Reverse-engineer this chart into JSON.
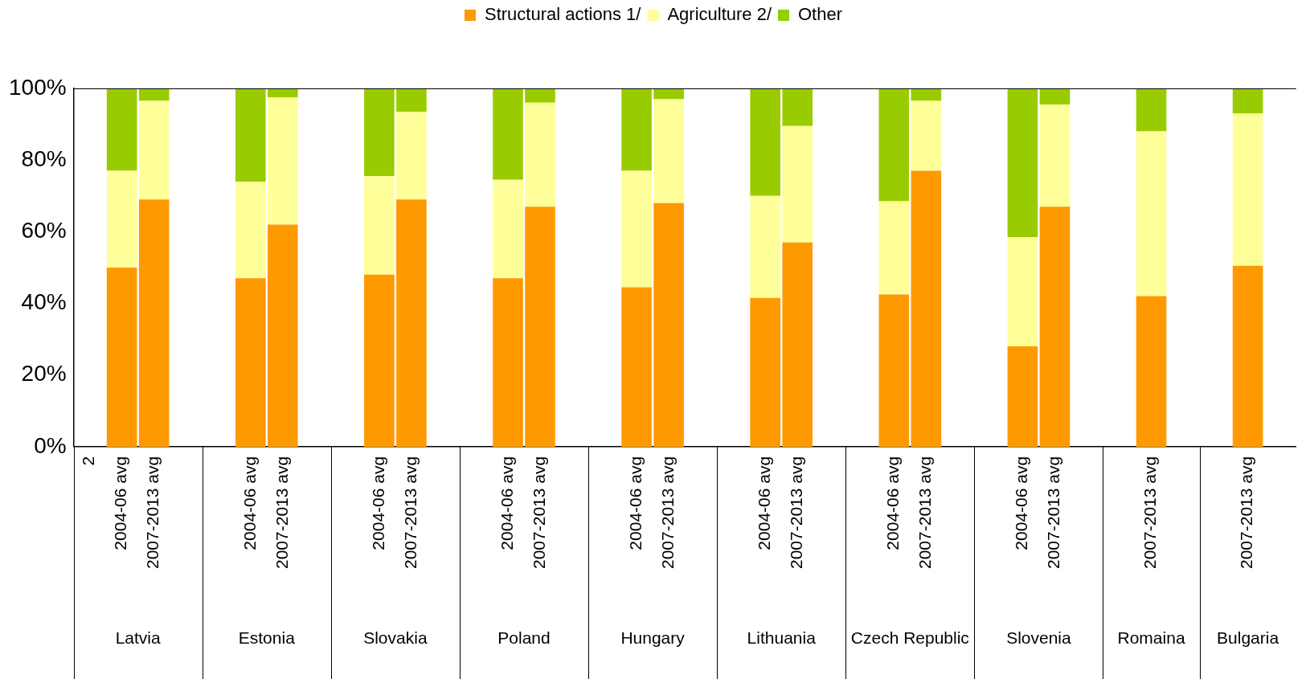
{
  "chart_data": {
    "type": "bar",
    "stacked": true,
    "categories": [
      "2",
      "2004-06 avg",
      "2007-2013 avg",
      null,
      null,
      "2004-06 avg",
      "2007-2013 avg",
      null,
      null,
      "2004-06 avg",
      "2007-2013 avg",
      null,
      null,
      "2004-06 avg",
      "2007-2013 avg",
      null,
      null,
      "2004-06 avg",
      "2007-2013 avg",
      null,
      null,
      "2004-06 avg",
      "2007-2013 avg",
      null,
      null,
      "2004-06 avg",
      "2007-2013 avg",
      null,
      null,
      "2004-06 avg",
      "2007-2013 avg",
      null,
      null,
      "2007-2013 avg",
      null,
      null,
      "2007-2013 avg",
      null
    ],
    "series": [
      {
        "name": "Structural actions 1/",
        "color": "#ff9900",
        "values": [
          null,
          50,
          69,
          null,
          null,
          47,
          62,
          null,
          null,
          48,
          69,
          null,
          null,
          47,
          67,
          null,
          null,
          44.5,
          68,
          null,
          null,
          41.5,
          57,
          null,
          null,
          42.5,
          77,
          null,
          null,
          28,
          67,
          null,
          null,
          42,
          null,
          null,
          50.5,
          null
        ]
      },
      {
        "name": "Agriculture 2/",
        "color": "#ffff99",
        "values": [
          null,
          27,
          27.5,
          null,
          null,
          27,
          35.5,
          null,
          null,
          27.5,
          24.5,
          null,
          null,
          27.5,
          29,
          null,
          null,
          32.5,
          29,
          null,
          null,
          28.5,
          32.5,
          null,
          null,
          26,
          19.5,
          null,
          null,
          30.5,
          28.5,
          null,
          null,
          46,
          null,
          null,
          42.5,
          null
        ]
      },
      {
        "name": "Other",
        "color": "#99cc00",
        "values": [
          null,
          23,
          3.5,
          null,
          null,
          26,
          2.5,
          null,
          null,
          24.5,
          6.5,
          null,
          null,
          25.5,
          4,
          null,
          null,
          23,
          3,
          null,
          null,
          30,
          10.5,
          null,
          null,
          31.5,
          3.5,
          null,
          null,
          41.5,
          4.5,
          null,
          null,
          12,
          null,
          null,
          7,
          null
        ]
      }
    ],
    "ylim": [
      0,
      100
    ],
    "yticks": [
      {
        "value": 0,
        "label": "0%"
      },
      {
        "value": 20,
        "label": "20%"
      },
      {
        "value": 40,
        "label": "40%"
      },
      {
        "value": 60,
        "label": "60%"
      },
      {
        "value": 80,
        "label": "80%"
      },
      {
        "value": 100,
        "label": "100%"
      }
    ],
    "grid": false,
    "legend": "top",
    "annotations": [
      "Latvia",
      "Estonia",
      "Slovakia",
      "Poland",
      "Hungary",
      "Lithuania",
      "Czech Republic",
      "Slovenia",
      "Romaina",
      "Bulgaria"
    ]
  }
}
